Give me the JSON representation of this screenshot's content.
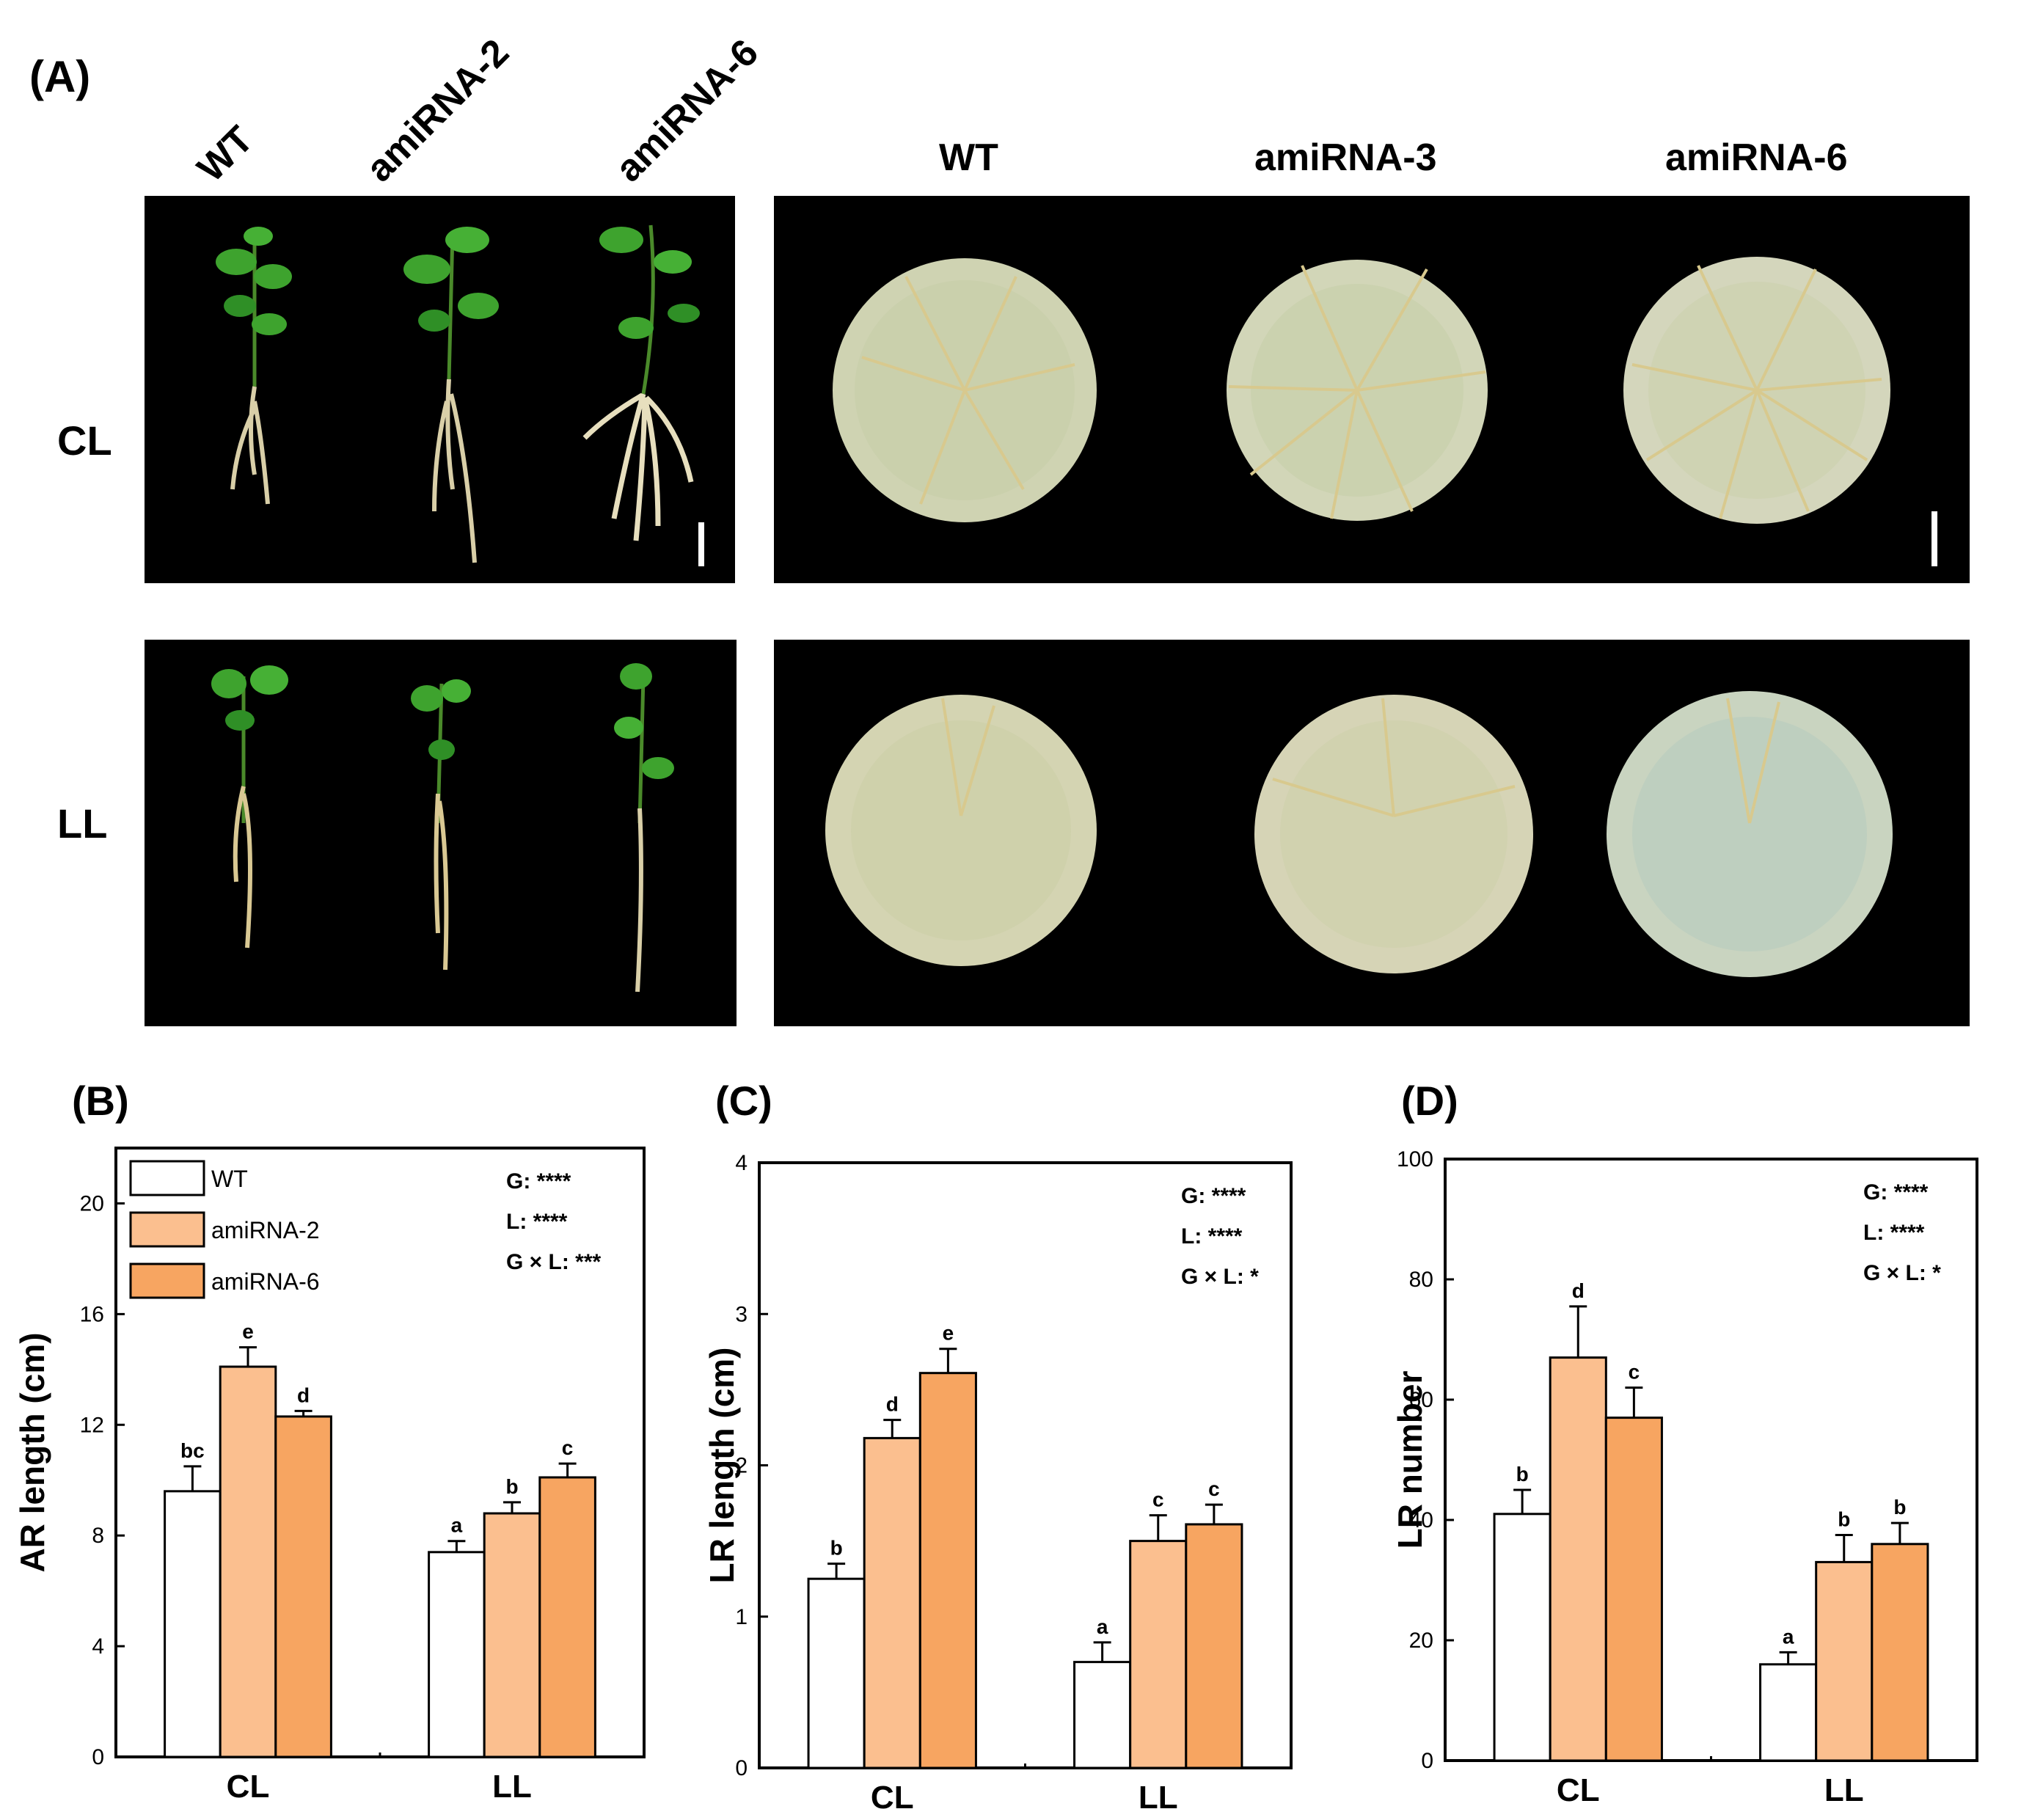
{
  "panel_a": {
    "label": "(A)",
    "left_columns": [
      "WT",
      "amiRNA-2",
      "amiRNA-6"
    ],
    "right_columns": [
      "WT",
      "amiRNA-3",
      "amiRNA-6"
    ],
    "rows": [
      "CL",
      "LL"
    ]
  },
  "colors": {
    "WT": "#ffffff",
    "amiRNA-2": "#fbbf8f",
    "amiRNA-6": "#f7a561",
    "background_photo": "#000000",
    "plate": "#cfd3b2",
    "leaf": "#3ea32e",
    "root": "#d9cfa8"
  },
  "chart_data": [
    {
      "panel": "(B)",
      "type": "bar",
      "categories": [
        "CL",
        "LL"
      ],
      "series": [
        {
          "name": "WT",
          "values": [
            9.6,
            7.4
          ],
          "errors": [
            0.9,
            0.4
          ],
          "letters": [
            "bc",
            "a"
          ]
        },
        {
          "name": "amiRNA-2",
          "values": [
            14.1,
            8.8
          ],
          "errors": [
            0.7,
            0.4
          ],
          "letters": [
            "e",
            "b"
          ]
        },
        {
          "name": "amiRNA-6",
          "values": [
            12.3,
            10.1
          ],
          "errors": [
            0.2,
            0.5
          ],
          "letters": [
            "d",
            "c"
          ]
        }
      ],
      "ylabel": "AR length (cm)",
      "ylim": [
        0,
        22
      ],
      "yticks": [
        0,
        4,
        8,
        12,
        16,
        20
      ],
      "legend": true,
      "legend_position": "top-left",
      "stats": [
        "G: ****",
        "L: ****",
        "G × L: ***"
      ]
    },
    {
      "panel": "(C)",
      "type": "bar",
      "categories": [
        "CL",
        "LL"
      ],
      "series": [
        {
          "name": "WT",
          "values": [
            1.25,
            0.7
          ],
          "errors": [
            0.1,
            0.13
          ],
          "letters": [
            "b",
            "a"
          ]
        },
        {
          "name": "amiRNA-2",
          "values": [
            2.18,
            1.5
          ],
          "errors": [
            0.12,
            0.17
          ],
          "letters": [
            "d",
            "c"
          ]
        },
        {
          "name": "amiRNA-6",
          "values": [
            2.61,
            1.61
          ],
          "errors": [
            0.16,
            0.13
          ],
          "letters": [
            "e",
            "c"
          ]
        }
      ],
      "ylabel": "LR length (cm)",
      "ylim": [
        0,
        4
      ],
      "yticks": [
        0,
        1,
        2,
        3,
        4
      ],
      "legend": false,
      "stats": [
        "G: ****",
        "L: ****",
        "G × L: *"
      ]
    },
    {
      "panel": "(D)",
      "type": "bar",
      "categories": [
        "CL",
        "LL"
      ],
      "series": [
        {
          "name": "WT",
          "values": [
            41,
            16
          ],
          "errors": [
            4,
            2
          ],
          "letters": [
            "b",
            "a"
          ]
        },
        {
          "name": "amiRNA-2",
          "values": [
            67,
            33
          ],
          "errors": [
            8.5,
            4.5
          ],
          "letters": [
            "d",
            "b"
          ]
        },
        {
          "name": "amiRNA-6",
          "values": [
            57,
            36
          ],
          "errors": [
            5,
            3.5
          ],
          "letters": [
            "c",
            "b"
          ]
        }
      ],
      "ylabel": "LR number",
      "ylim": [
        0,
        100
      ],
      "yticks": [
        0,
        20,
        40,
        60,
        80,
        100
      ],
      "legend": false,
      "stats": [
        "G: ****",
        "L: ****",
        "G × L: *"
      ]
    }
  ]
}
